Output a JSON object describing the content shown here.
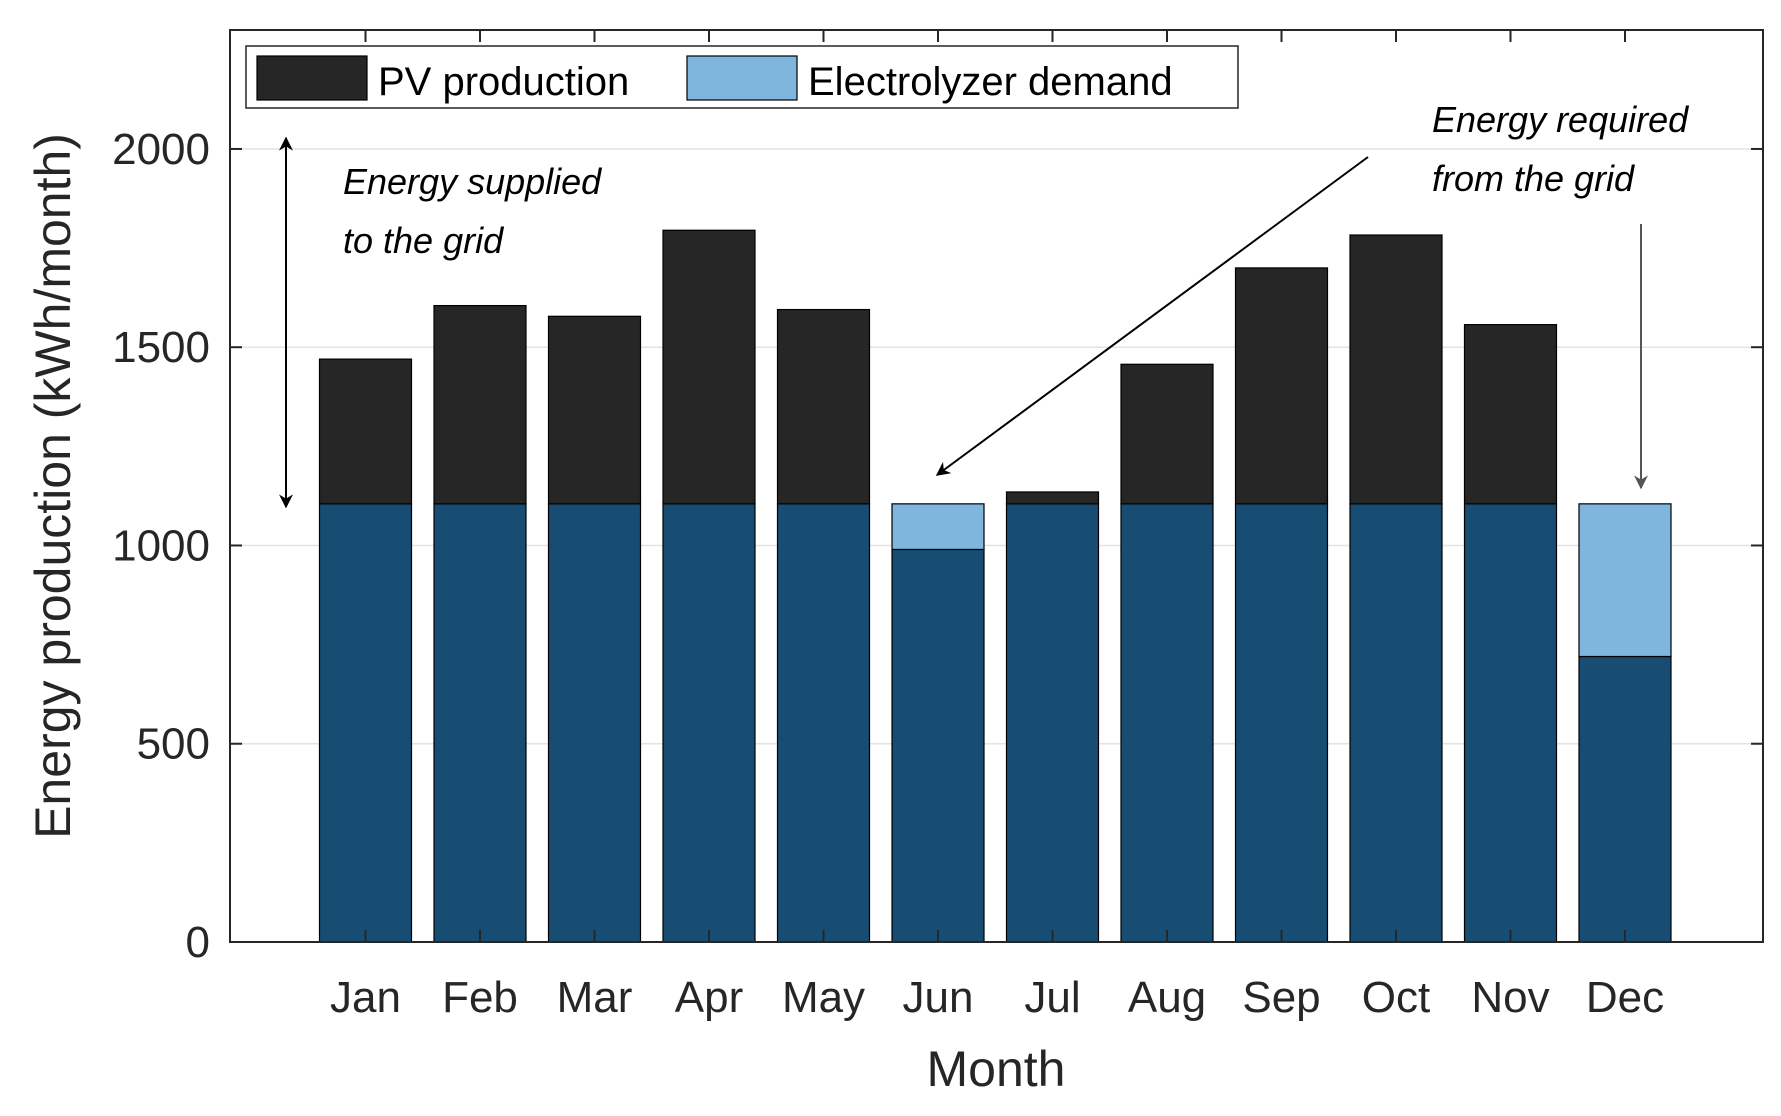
{
  "chart_data": {
    "type": "bar",
    "title": "",
    "xlabel": "Month",
    "ylabel": "Energy production (kWh/month)",
    "categories": [
      "Jan",
      "Feb",
      "Mar",
      "Apr",
      "May",
      "Jun",
      "Jul",
      "Aug",
      "Sep",
      "Oct",
      "Nov",
      "Dec"
    ],
    "ylim": [
      0,
      2300
    ],
    "yticks": [
      0,
      500,
      1000,
      1500,
      2000
    ],
    "ytick_labels": [
      "0",
      "500",
      "1000",
      "1500",
      "2000"
    ],
    "grid": true,
    "legend_position": "top-left",
    "overlay": true,
    "series": [
      {
        "name": "PV production",
        "color": "#262626",
        "values": [
          1470,
          1605,
          1578,
          1795,
          1595,
          990,
          1135,
          1457,
          1700,
          1783,
          1557,
          720
        ]
      },
      {
        "name": "Electrolyzer demand",
        "color": "#7EB6DE",
        "values": [
          1105,
          1105,
          1105,
          1105,
          1105,
          1105,
          1105,
          1105,
          1105,
          1105,
          1105,
          1105
        ]
      }
    ],
    "overlap_color": "#174D72",
    "annotations": [
      {
        "id": "supplied",
        "lines": [
          "Energy supplied",
          "to the grid"
        ]
      },
      {
        "id": "required",
        "lines": [
          "Energy required",
          "from the grid"
        ]
      }
    ]
  }
}
